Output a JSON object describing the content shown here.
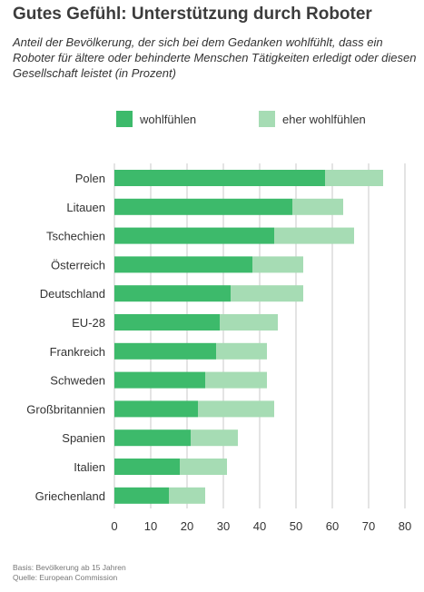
{
  "title": "Gutes Gefühl: Unterstützung durch Roboter",
  "subtitle": "Anteil der Bevölkerung, der sich bei dem Gedanken wohlfühlt, dass ein Roboter für ältere oder behinderte Menschen Tätigkeiten erledigt oder diesen Gesellschaft leistet (in Prozent)",
  "footer": {
    "basis": "Basis: Bevölkerung ab 15 Jahren",
    "source": "Quelle: European Commission"
  },
  "colors": {
    "wohlfuehlen": "#3dba6b",
    "eher_wohlfuehlen": "#a6dcb4",
    "grid": "#c8c8c8"
  },
  "chart_data": {
    "type": "bar",
    "orientation": "horizontal",
    "stacked": true,
    "title": "Gutes Gefühl: Unterstützung durch Roboter",
    "categories": [
      "Polen",
      "Litauen",
      "Tschechien",
      "Österreich",
      "Deutschland",
      "EU-28",
      "Frankreich",
      "Schweden",
      "Großbritannien",
      "Spanien",
      "Italien",
      "Griechenland"
    ],
    "series": [
      {
        "name": "wohlfühlen",
        "values": [
          58,
          49,
          44,
          38,
          32,
          29,
          28,
          25,
          23,
          21,
          18,
          15
        ]
      },
      {
        "name": "eher wohlfühlen",
        "values": [
          16,
          14,
          22,
          14,
          20,
          16,
          14,
          17,
          21,
          13,
          13,
          10
        ]
      }
    ],
    "xlim": [
      0,
      80
    ],
    "xticks": [
      0,
      10,
      20,
      30,
      40,
      50,
      60,
      70,
      80
    ],
    "grid": true,
    "legend_position": "top"
  }
}
